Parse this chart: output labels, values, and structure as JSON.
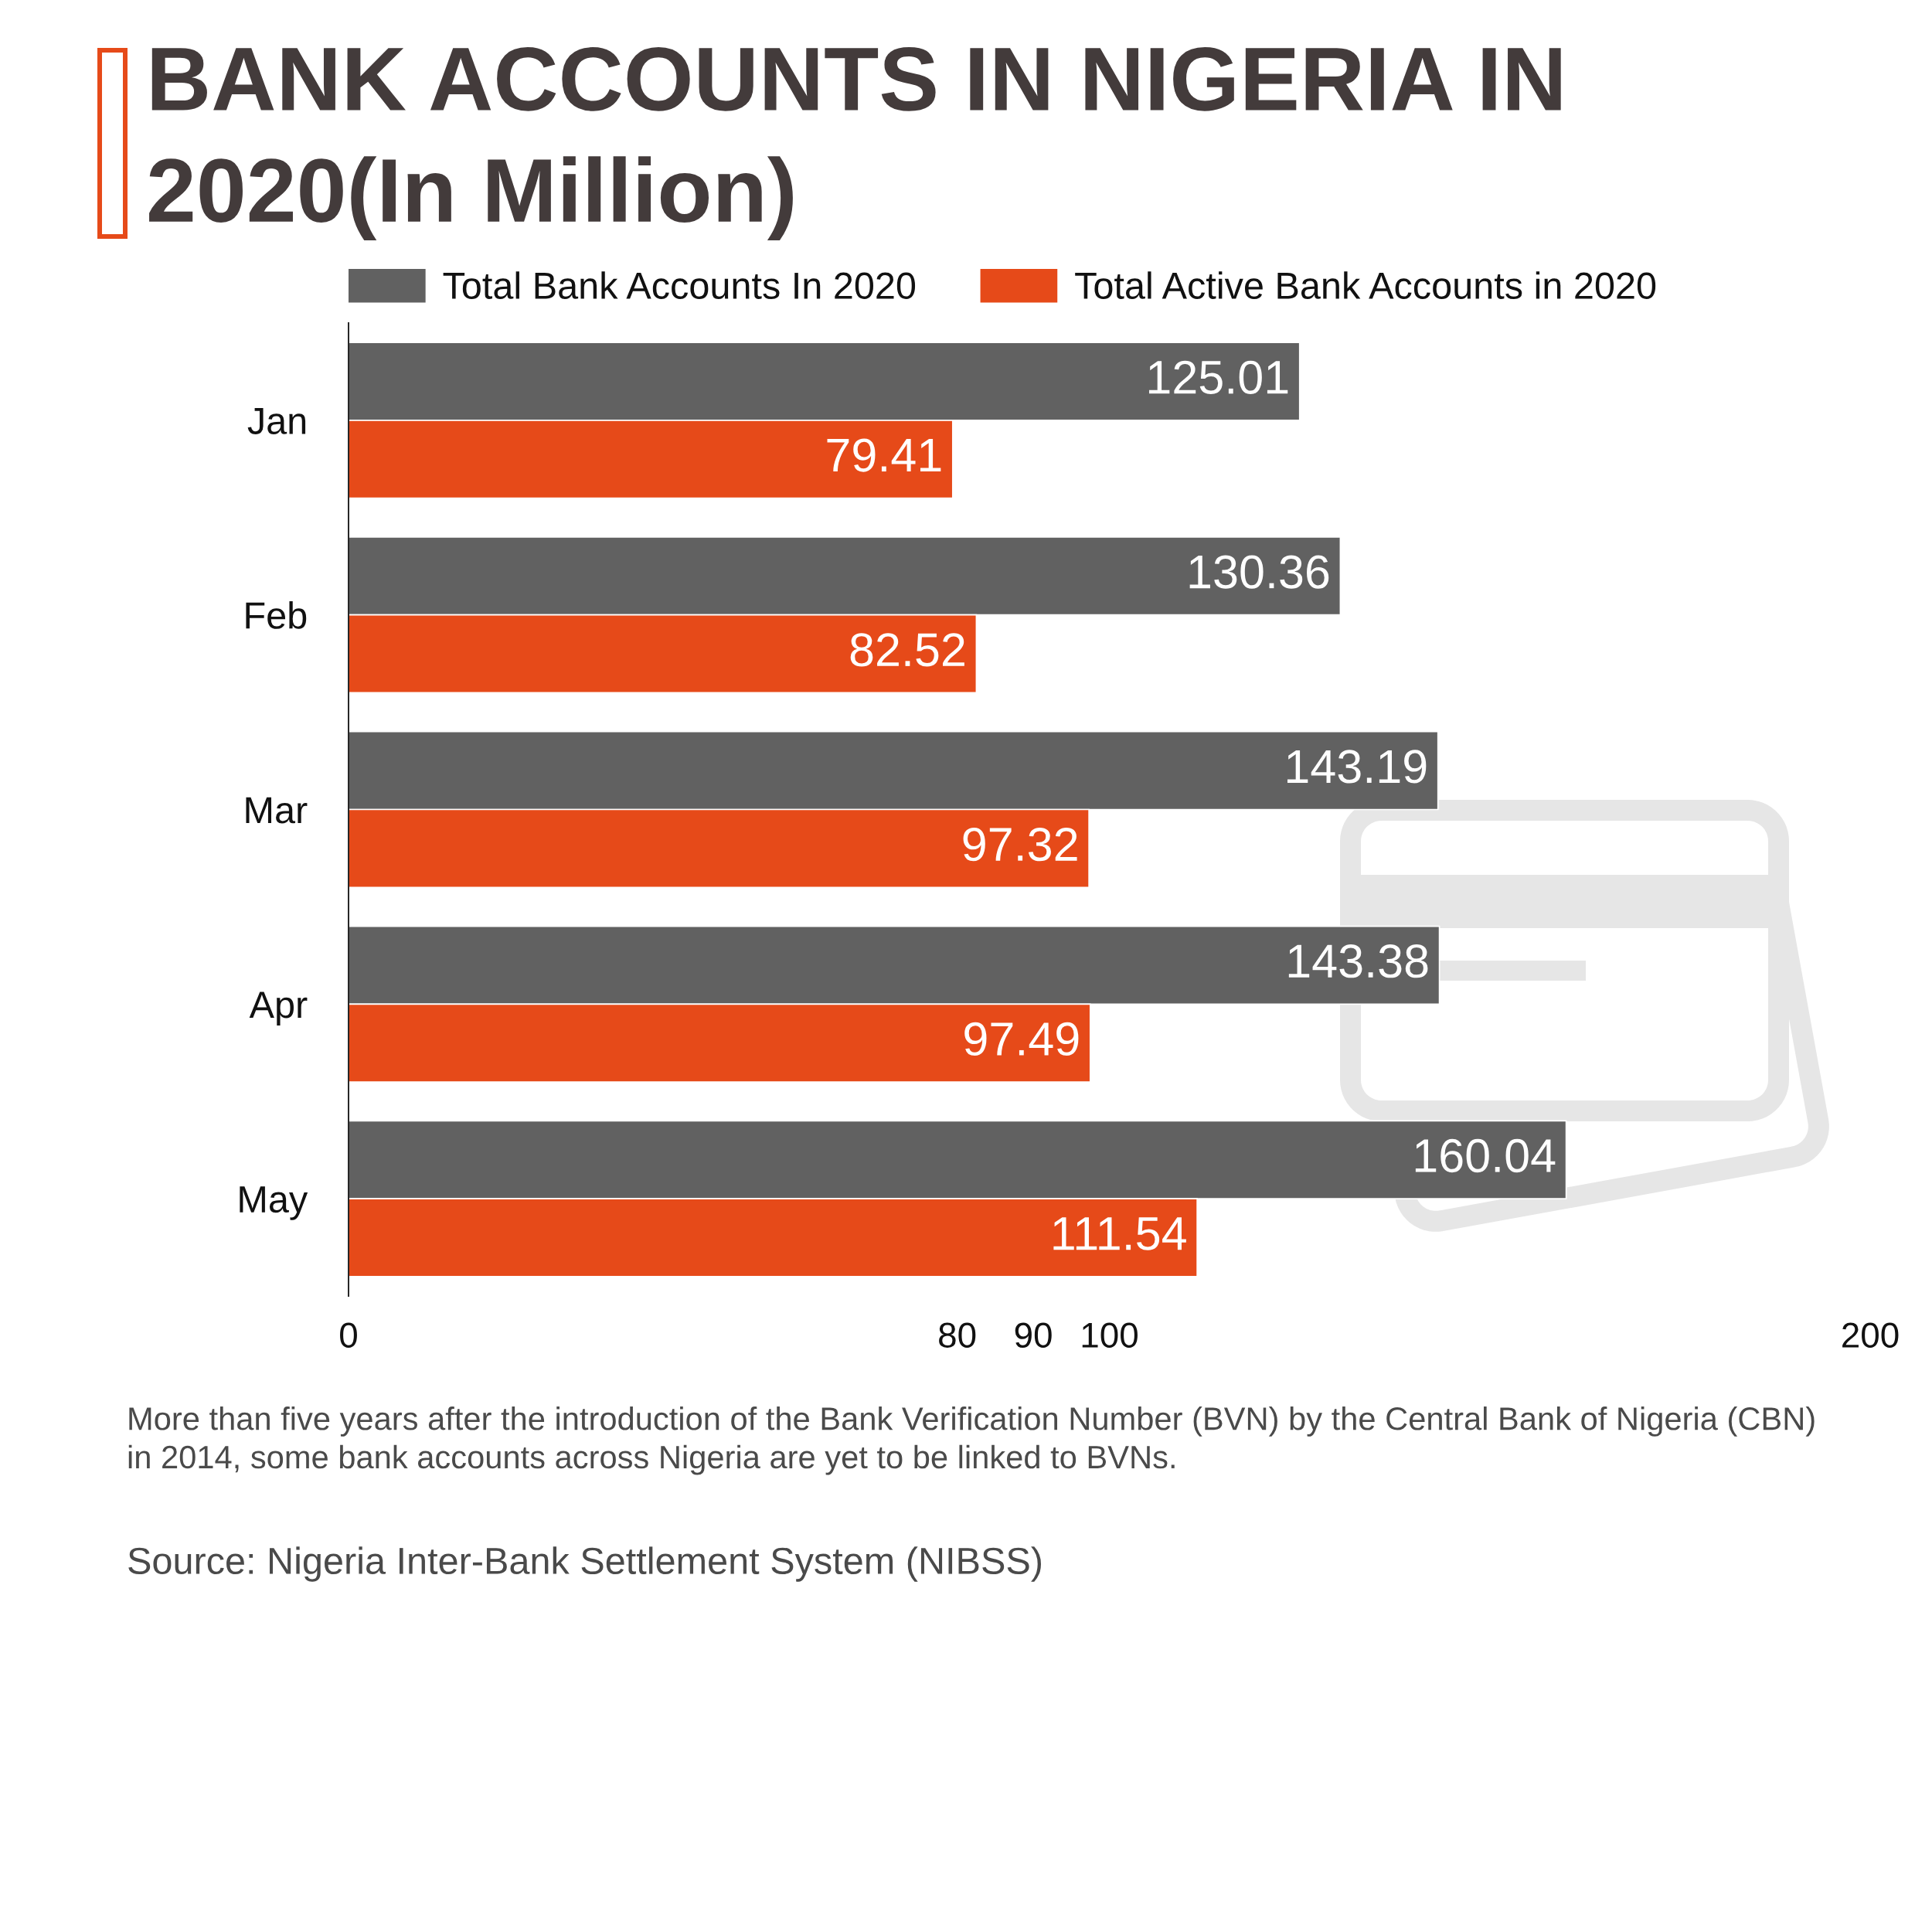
{
  "chart_data": {
    "type": "bar",
    "orientation": "horizontal",
    "title": "BANK ACCOUNTS IN NIGERIA IN 2020(In Million)",
    "categories": [
      "Jan",
      "Feb",
      "Mar",
      "Apr",
      "May"
    ],
    "series": [
      {
        "name": "Total Bank Accounts In 2020",
        "color": "#616161",
        "values": [
          125.01,
          130.36,
          143.19,
          143.38,
          160.04
        ]
      },
      {
        "name": "Total Active Bank Accounts in 2020",
        "color": "#e64a19",
        "values": [
          79.41,
          82.52,
          97.32,
          97.49,
          111.54
        ]
      }
    ],
    "xlim": [
      0,
      200
    ],
    "xticks": [
      0,
      80,
      90,
      100,
      200
    ],
    "data_labels": true,
    "legend": "top",
    "annotations": [
      "More than five years after the introduction of the Bank Verification Number (BVN) by the Central Bank of Nigeria (CBN) in 2014, some bank accounts across Nigeria are yet to be linked to BVNs.",
      "Source: Nigeria Inter-Bank Settlement System (NIBSS)"
    ]
  }
}
